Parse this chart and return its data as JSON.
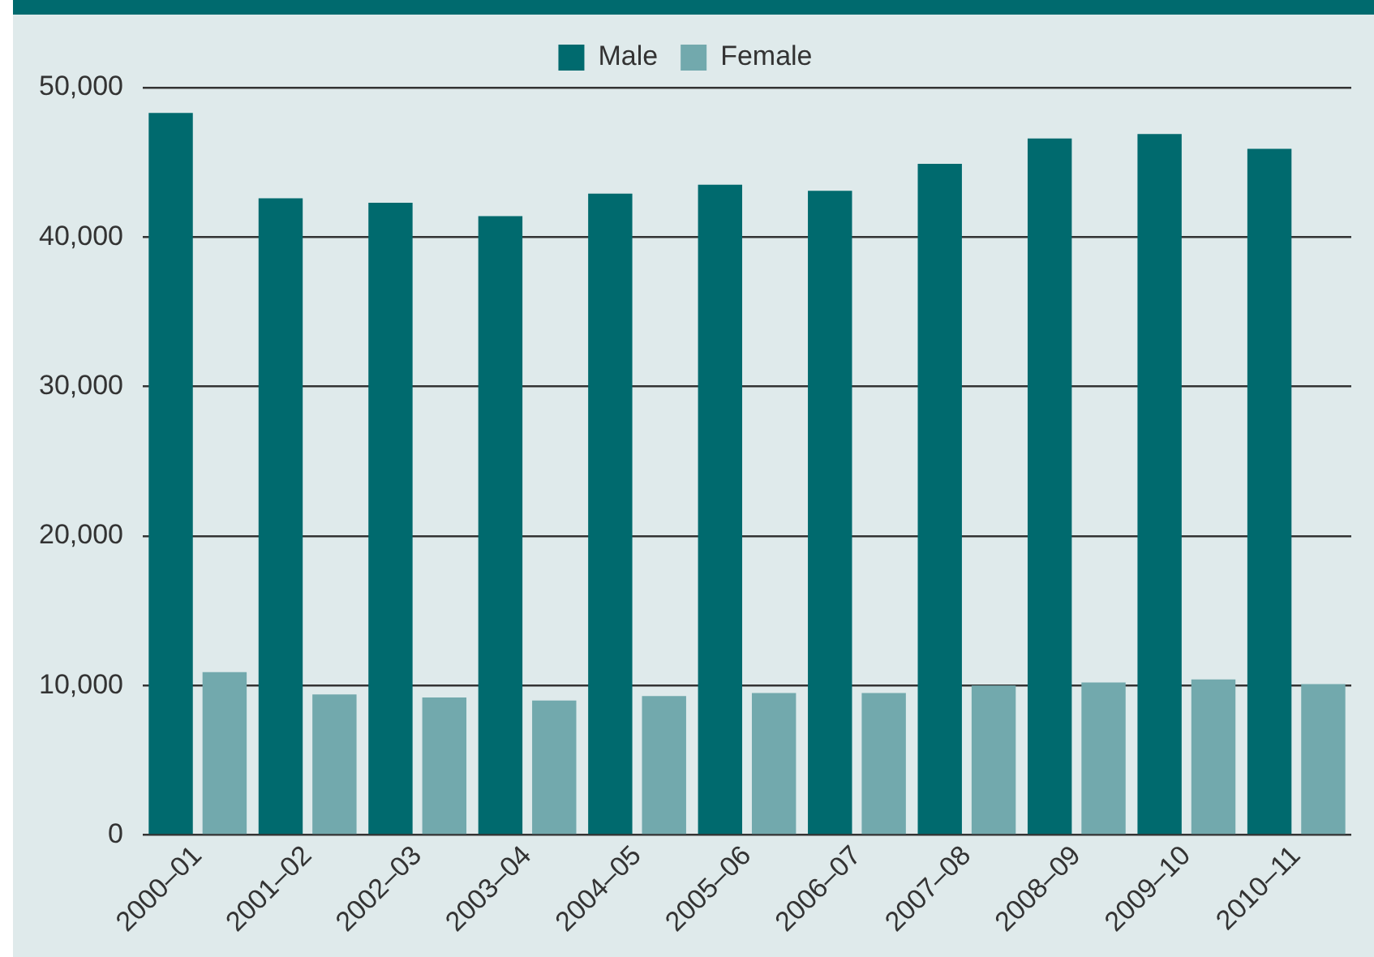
{
  "chart_data": {
    "type": "bar",
    "categories": [
      "2000–01",
      "2001–02",
      "2002–03",
      "2003–04",
      "2004–05",
      "2005–06",
      "2006–07",
      "2007–08",
      "2008–09",
      "2009–10",
      "2010–11"
    ],
    "series": [
      {
        "name": "Male",
        "color": "#006a6e",
        "values": [
          48300,
          42600,
          42300,
          41400,
          42900,
          43500,
          43100,
          44900,
          46600,
          46900,
          45900
        ]
      },
      {
        "name": "Female",
        "color": "#72a9ad",
        "values": [
          10900,
          9400,
          9200,
          9000,
          9300,
          9500,
          9500,
          10000,
          10200,
          10400,
          10100
        ]
      }
    ],
    "ylim": [
      0,
      50000
    ],
    "yticks": [
      0,
      {
        "value": 10000,
        "label": "10,000"
      },
      {
        "value": 20000,
        "label": "20,000"
      },
      {
        "value": 30000,
        "label": "30,000"
      },
      {
        "value": 40000,
        "label": "40,000"
      },
      {
        "value": 50000,
        "label": "50,000"
      }
    ],
    "grid": "y",
    "legend": "top"
  }
}
